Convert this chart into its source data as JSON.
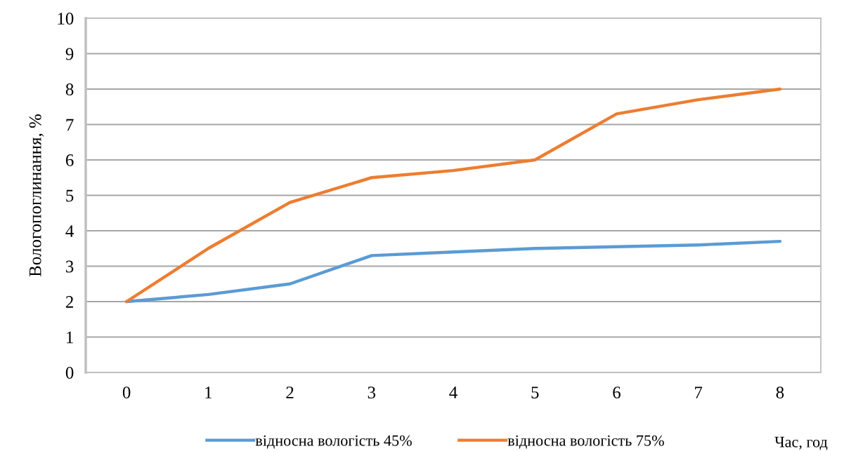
{
  "chart_data": {
    "type": "line",
    "xlabel": "Час, год",
    "ylabel": "Вологопоглинання, %",
    "categories": [
      "0",
      "1",
      "2",
      "3",
      "4",
      "5",
      "6",
      "7",
      "8"
    ],
    "series": [
      {
        "name": "відносна вологість 45%",
        "color": "#5b9bd5",
        "values": [
          2.0,
          2.2,
          2.5,
          3.3,
          3.4,
          3.5,
          3.55,
          3.6,
          3.7
        ]
      },
      {
        "name": "відносна вологість 75%",
        "color": "#ed7d31",
        "values": [
          2.0,
          3.5,
          4.8,
          5.5,
          5.7,
          6.0,
          7.3,
          7.7,
          8.0
        ]
      }
    ],
    "ylim": [
      0,
      10
    ],
    "yticks": [
      0,
      1,
      2,
      3,
      4,
      5,
      6,
      7,
      8,
      9,
      10
    ],
    "grid": "y",
    "legend": "bottom",
    "marker": "none",
    "line_style": "solid"
  }
}
